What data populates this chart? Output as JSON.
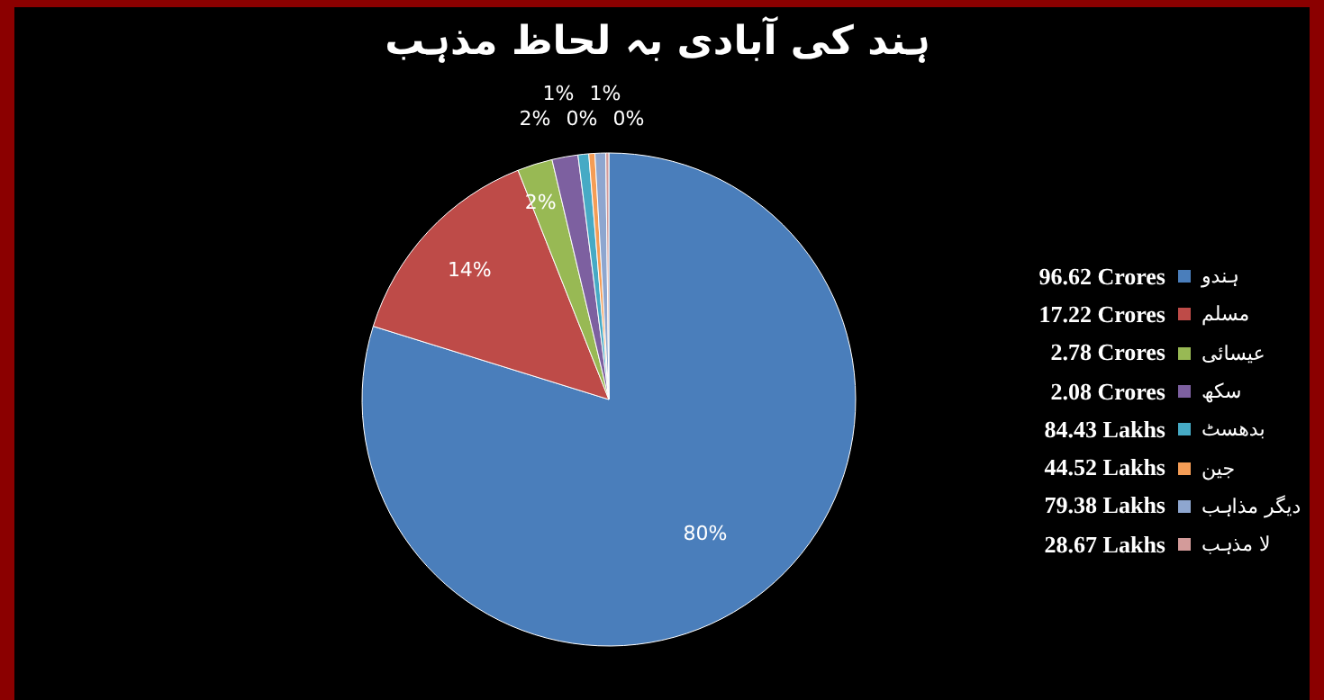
{
  "chart_data": {
    "type": "pie",
    "title": "ہند کی آبادی بہ لحاظ مذہب",
    "categories": [
      "ہندو",
      "مسلم",
      "عیسائی",
      "سکھ",
      "بدھسٹ",
      "جین",
      "دیگر مذاہب",
      "لا مذہب"
    ],
    "values": [
      79.8,
      14.2,
      2.3,
      1.7,
      0.7,
      0.4,
      0.7,
      0.2
    ],
    "value_labels": [
      "80%",
      "14%",
      "2%",
      "2%",
      "1%",
      "0%",
      "1%",
      "0%"
    ],
    "colors": [
      "#4a7ebb",
      "#be4b48",
      "#98b954",
      "#7d60a0",
      "#46aac5",
      "#f59d56",
      "#8ea6cf",
      "#d39b9a"
    ],
    "annotations": [
      "96.62 Crores",
      "17.22 Crores",
      "2.78 Crores",
      "2.08 Crores",
      "84.43 Lakhs",
      "44.52 Lakhs",
      "79.38 Lakhs",
      "28.67 Lakhs"
    ],
    "legend": "right"
  }
}
